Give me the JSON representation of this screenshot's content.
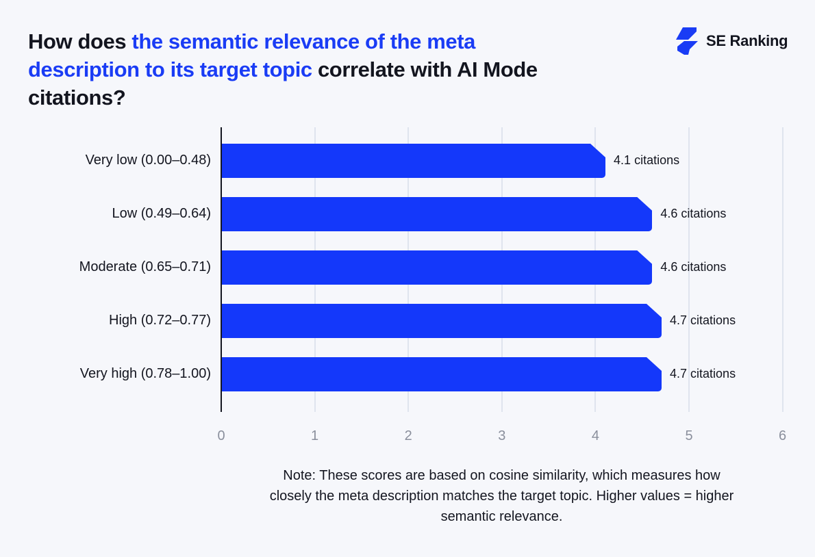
{
  "title": {
    "part1": "How does ",
    "highlight": "the semantic relevance of the meta description to its target topic",
    "part2": " correlate with AI Mode citations?"
  },
  "logo": {
    "text": "SE Ranking",
    "icon": "se-ranking-logo-icon",
    "color": "#1a3cf5"
  },
  "note": "Note: These scores are based on cosine similarity, which measures how closely the meta description matches the target topic. Higher values = higher semantic relevance.",
  "colors": {
    "bar": "#1438fa",
    "highlight": "#1a3cf5",
    "text": "#13151f",
    "tick": "#8a8f9c",
    "grid": "#dfe4ee",
    "background": "#f6f7fb"
  },
  "chart_data": {
    "type": "bar",
    "orientation": "horizontal",
    "title": "How does the semantic relevance of the meta description to its target topic correlate with AI Mode citations?",
    "categories": [
      "Very low (0.00–0.48)",
      "Low (0.49–0.64)",
      "Moderate (0.65–0.71)",
      "High (0.72–0.77)",
      "Very high (0.78–1.00)"
    ],
    "values": [
      4.1,
      4.6,
      4.6,
      4.7,
      4.7
    ],
    "value_labels": [
      "4.1 citations",
      "4.6 citations",
      "4.6 citations",
      "4.7 citations",
      "4.7 citations"
    ],
    "xlabel": "",
    "ylabel": "",
    "xlim": [
      0,
      6
    ],
    "x_ticks": [
      "0",
      "1",
      "2",
      "3",
      "4",
      "5",
      "6"
    ],
    "grid": true,
    "legend": null,
    "annotations": [
      "Note: These scores are based on cosine similarity, which measures how closely the meta description matches the target topic. Higher values = higher semantic relevance."
    ]
  }
}
